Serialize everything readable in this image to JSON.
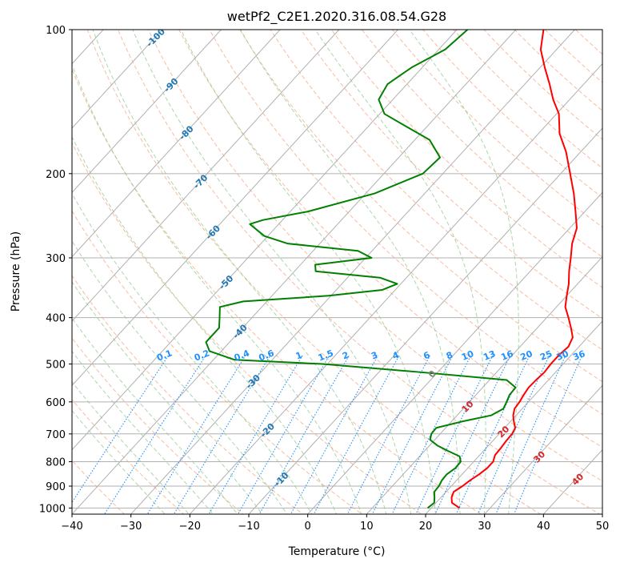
{
  "chart_data": {
    "type": "line",
    "chart_kind": "skew-t log-p diagram",
    "title": "wetPf2_C2E1.2020.316.08.54.G28",
    "xlabel": "Temperature (°C)",
    "ylabel": "Pressure (hPa)",
    "xlim": [
      -40,
      50
    ],
    "ylim": [
      1030,
      100
    ],
    "y_scale": "log",
    "x_ticks": [
      -40,
      -30,
      -20,
      -10,
      0,
      10,
      20,
      30,
      40,
      50
    ],
    "x_tick_labels": [
      "−40",
      "−30",
      "−20",
      "−10",
      "0",
      "10",
      "20",
      "30",
      "40",
      "50"
    ],
    "y_ticks": [
      1000,
      900,
      800,
      700,
      600,
      500,
      400,
      300,
      200,
      100
    ],
    "y_tick_labels": [
      "1000",
      "900",
      "800",
      "700",
      "600",
      "500",
      "400",
      "300",
      "200",
      "100"
    ],
    "grid": true,
    "series": [
      {
        "role": "temperature",
        "color": "#ff0000",
        "points": [
          [
            1000,
            24.8
          ],
          [
            975,
            22.7
          ],
          [
            950,
            21.8
          ],
          [
            925,
            21.3
          ],
          [
            900,
            21.9
          ],
          [
            875,
            22.3
          ],
          [
            850,
            22.9
          ],
          [
            825,
            23.3
          ],
          [
            800,
            23.3
          ],
          [
            775,
            22.6
          ],
          [
            750,
            22.5
          ],
          [
            725,
            22.3
          ],
          [
            700,
            22.2
          ],
          [
            680,
            21.8
          ],
          [
            660,
            20.6
          ],
          [
            640,
            19.5
          ],
          [
            620,
            18.7
          ],
          [
            600,
            18.5
          ],
          [
            580,
            18.1
          ],
          [
            560,
            17.8
          ],
          [
            540,
            17.9
          ],
          [
            520,
            18.1
          ],
          [
            500,
            17.9
          ],
          [
            480,
            17.9
          ],
          [
            460,
            18.2
          ],
          [
            440,
            17.5
          ],
          [
            420,
            15.7
          ],
          [
            400,
            13.7
          ],
          [
            380,
            11.5
          ],
          [
            360,
            10.0
          ],
          [
            340,
            8.5
          ],
          [
            320,
            6.6
          ],
          [
            300,
            4.8
          ],
          [
            280,
            2.8
          ],
          [
            260,
            1.2
          ],
          [
            240,
            -1.6
          ],
          [
            220,
            -4.7
          ],
          [
            200,
            -8.4
          ],
          [
            180,
            -12.5
          ],
          [
            165,
            -16.4
          ],
          [
            150,
            -19.6
          ],
          [
            140,
            -22.8
          ],
          [
            130,
            -25.8
          ],
          [
            120,
            -29.2
          ],
          [
            110,
            -32.7
          ],
          [
            100,
            -35.3
          ]
        ]
      },
      {
        "role": "dewpoint",
        "color": "#008000",
        "points": [
          [
            1000,
            19.4
          ],
          [
            975,
            19.7
          ],
          [
            950,
            18.9
          ],
          [
            925,
            18.0
          ],
          [
            900,
            17.9
          ],
          [
            875,
            17.5
          ],
          [
            850,
            17.4
          ],
          [
            825,
            17.9
          ],
          [
            800,
            17.8
          ],
          [
            780,
            16.8
          ],
          [
            760,
            14.0
          ],
          [
            740,
            11.3
          ],
          [
            720,
            9.2
          ],
          [
            700,
            8.5
          ],
          [
            680,
            8.4
          ],
          [
            660,
            11.7
          ],
          [
            640,
            15.8
          ],
          [
            620,
            16.8
          ],
          [
            600,
            16.3
          ],
          [
            580,
            15.7
          ],
          [
            560,
            15.6
          ],
          [
            540,
            12.9
          ],
          [
            520,
            -3.0
          ],
          [
            500,
            -20.8
          ],
          [
            490,
            -36.4
          ],
          [
            470,
            -42.0
          ],
          [
            450,
            -44.0
          ],
          [
            420,
            -44.0
          ],
          [
            400,
            -45.5
          ],
          [
            380,
            -47.1
          ],
          [
            370,
            -44.0
          ],
          [
            360,
            -30.4
          ],
          [
            350,
            -22.2
          ],
          [
            340,
            -20.6
          ],
          [
            330,
            -24.5
          ],
          [
            320,
            -36.4
          ],
          [
            310,
            -37.5
          ],
          [
            300,
            -29.0
          ],
          [
            290,
            -32.4
          ],
          [
            280,
            -45.5
          ],
          [
            270,
            -50.6
          ],
          [
            255,
            -54.9
          ],
          [
            250,
            -53.3
          ],
          [
            240,
            -47.0
          ],
          [
            220,
            -38.5
          ],
          [
            200,
            -33.4
          ],
          [
            185,
            -33.0
          ],
          [
            170,
            -37.5
          ],
          [
            160,
            -43.2
          ],
          [
            150,
            -49.2
          ],
          [
            140,
            -52.4
          ],
          [
            130,
            -53.3
          ],
          [
            120,
            -51.8
          ],
          [
            110,
            -48.9
          ],
          [
            100,
            -48.2
          ]
        ]
      }
    ],
    "background_lines": {
      "isotherms": {
        "color": "#b0b0b0",
        "style": "solid",
        "values_degC": [
          -100,
          -90,
          -80,
          -70,
          -60,
          -50,
          -40,
          -30,
          -20,
          -10,
          0,
          10,
          20,
          30,
          40,
          50
        ]
      },
      "dry_adiabats": {
        "color": "#f4a582",
        "style": "dashed"
      },
      "moist_adiabats": {
        "color": "#90c890",
        "style": "dashed"
      },
      "mixing_ratio": {
        "color": "#1e90ff",
        "style": "dotted"
      }
    },
    "annotations": {
      "isotherm_labels": [
        {
          "text": "-100",
          "t": -100
        },
        {
          "text": "-90",
          "t": -90
        },
        {
          "text": "-80",
          "t": -80
        },
        {
          "text": "-70",
          "t": -70
        },
        {
          "text": "-60",
          "t": -60
        },
        {
          "text": "-50",
          "t": -50
        },
        {
          "text": "-40",
          "t": -40
        },
        {
          "text": "-30",
          "t": -30
        },
        {
          "text": "-20",
          "t": -20
        },
        {
          "text": "-10",
          "t": -10
        }
      ],
      "freezing_label": "0",
      "warm_isotherm_labels": [
        {
          "text": "10",
          "t": 10
        },
        {
          "text": "20",
          "t": 20
        },
        {
          "text": "30",
          "t": 30
        },
        {
          "text": "40",
          "t": 40
        }
      ],
      "mixing_ratio_labels": [
        "0.1",
        "0.2",
        "0.4",
        "0.6",
        "1",
        "1.5",
        "2",
        "3",
        "4",
        "6",
        "8",
        "10",
        "13",
        "16",
        "20",
        "25",
        "30",
        "36"
      ],
      "colors": {
        "isotherm_label": "#1f77b4",
        "mixing_ratio_label": "#1e90ff",
        "warm_label": "#d62728",
        "freezing_label": "#808080"
      }
    }
  }
}
